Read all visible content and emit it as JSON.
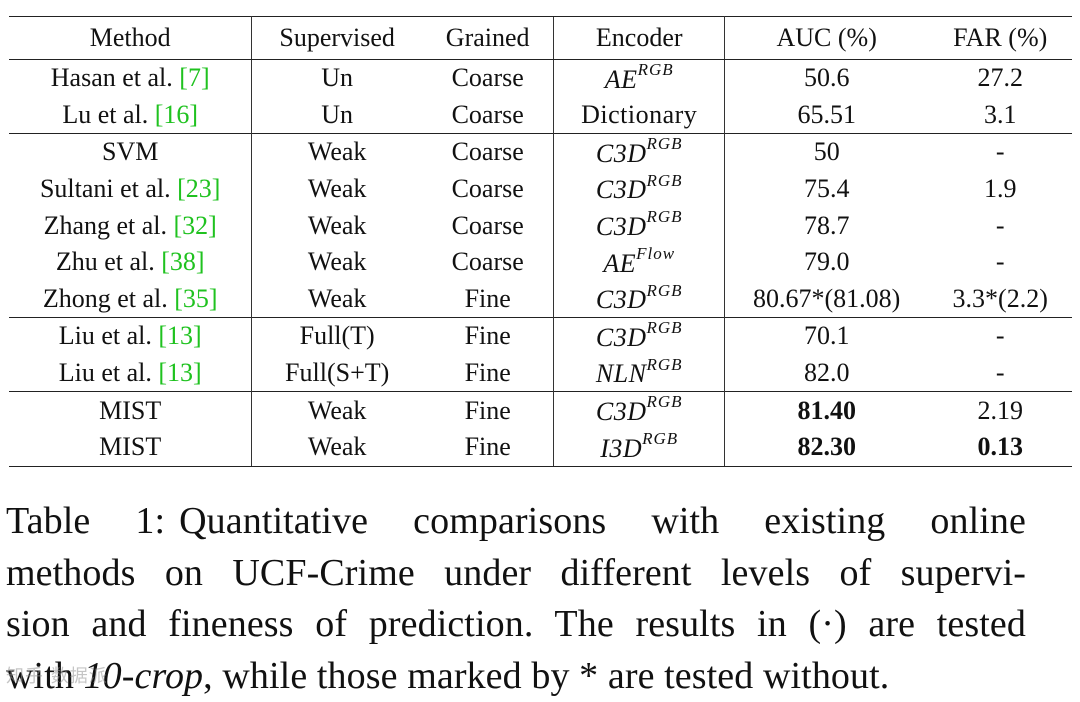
{
  "table": {
    "headers": {
      "method": "Method",
      "supervised": "Supervised",
      "grained": "Grained",
      "encoder": "Encoder",
      "auc": "AUC (%)",
      "far": "FAR (%)"
    },
    "groups": [
      [
        {
          "method": "Hasan et al. ",
          "cite": "[7]",
          "supervised": "Un",
          "grained": "Coarse",
          "enc_base": "AE",
          "enc_sup": "RGB",
          "auc": "50.6",
          "far": "27.2"
        },
        {
          "method": "Lu et al. ",
          "cite": "[16]",
          "supervised": "Un",
          "grained": "Coarse",
          "enc_base": "Dictionary",
          "enc_sup": "",
          "auc": "65.51",
          "far": "3.1"
        }
      ],
      [
        {
          "method": "SVM",
          "cite": "",
          "supervised": "Weak",
          "grained": "Coarse",
          "enc_base": "C3D",
          "enc_sup": "RGB",
          "auc": "50",
          "far": "-"
        },
        {
          "method": "Sultani et al. ",
          "cite": "[23]",
          "supervised": "Weak",
          "grained": "Coarse",
          "enc_base": "C3D",
          "enc_sup": "RGB",
          "auc": "75.4",
          "far": "1.9"
        },
        {
          "method": "Zhang et al. ",
          "cite": "[32]",
          "supervised": "Weak",
          "grained": "Coarse",
          "enc_base": "C3D",
          "enc_sup": "RGB",
          "auc": "78.7",
          "far": "-"
        },
        {
          "method": "Zhu et al. ",
          "cite": "[38]",
          "supervised": "Weak",
          "grained": "Coarse",
          "enc_base": "AE",
          "enc_sup": "Flow",
          "auc": "79.0",
          "far": "-"
        },
        {
          "method": "Zhong et al. ",
          "cite": "[35]",
          "supervised": "Weak",
          "grained": "Fine",
          "enc_base": "C3D",
          "enc_sup": "RGB",
          "auc": "80.67*(81.08)",
          "far": "3.3*(2.2)"
        }
      ],
      [
        {
          "method": "Liu et al. ",
          "cite": "[13]",
          "supervised": "Full(T)",
          "grained": "Fine",
          "enc_base": "C3D",
          "enc_sup": "RGB",
          "auc": "70.1",
          "far": "-"
        },
        {
          "method": "Liu et al. ",
          "cite": "[13]",
          "supervised": "Full(S+T)",
          "grained": "Fine",
          "enc_base": "NLN",
          "enc_sup": "RGB",
          "auc": "82.0",
          "far": "-"
        }
      ],
      [
        {
          "method": "MIST",
          "cite": "",
          "supervised": "Weak",
          "grained": "Fine",
          "enc_base": "C3D",
          "enc_sup": "RGB",
          "auc": "81.40",
          "far": "2.19",
          "bold_auc": true,
          "bold_far": false
        },
        {
          "method": "MIST",
          "cite": "",
          "supervised": "Weak",
          "grained": "Fine",
          "enc_base": "I3D",
          "enc_sup": "RGB",
          "auc": "82.30",
          "far": "0.13",
          "bold_auc": true,
          "bold_far": true
        }
      ]
    ]
  },
  "caption": {
    "label": "Table 1:",
    "line1": "Quantitative comparisons with existing online",
    "line2": "methods on UCF-Crime under different levels of supervi-",
    "line3": "sion and fineness of prediction. The results in (·) are tested",
    "line4_pre": "with ",
    "line4_em": "10-crop",
    "line4_post": ", while those marked by * are tested without."
  },
  "watermark": "知乎 数据派"
}
